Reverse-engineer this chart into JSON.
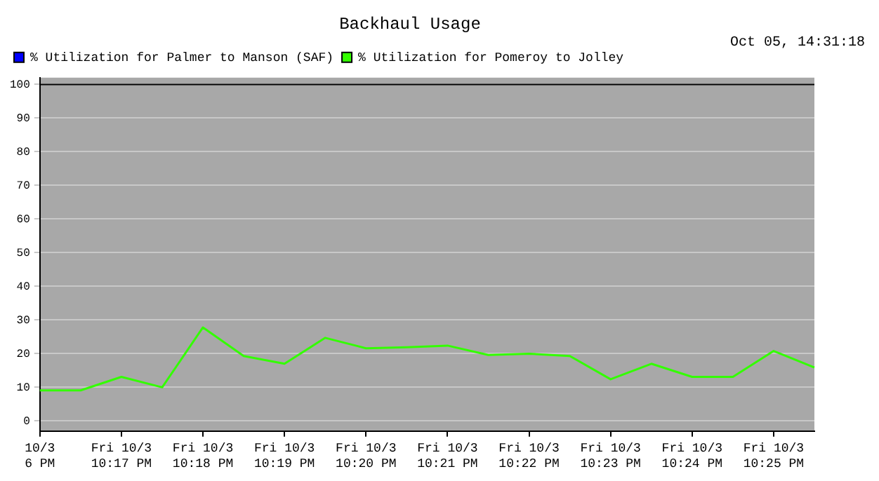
{
  "chart_data": {
    "type": "line",
    "title": "Backhaul Usage",
    "annotations": [
      "Oct 05, 14:31:18"
    ],
    "categories": [
      "10/3\n6 PM",
      null,
      "Fri 10/3\n10:17 PM",
      null,
      "Fri 10/3\n10:18 PM",
      null,
      "Fri 10/3\n10:19 PM",
      null,
      "Fri 10/3\n10:20 PM",
      null,
      "Fri 10/3\n10:21 PM",
      null,
      "Fri 10/3\n10:22 PM",
      null,
      "Fri 10/3\n10:23 PM",
      null,
      "Fri 10/3\n10:24 PM",
      null,
      "Fri 10/3\n10:25 PM",
      null
    ],
    "ylim": [
      -3,
      102
    ],
    "yticks": [
      0,
      10,
      20,
      30,
      40,
      50,
      60,
      70,
      80,
      90,
      100
    ],
    "ref_lines": [
      {
        "axis": "y",
        "value": 100,
        "color": "#000000"
      }
    ],
    "grid": "y",
    "legend": "top left",
    "marker": "none",
    "line_style": "solid",
    "series": [
      {
        "name": "% Utilization for Palmer to Manson (SAF)",
        "color": "#0000ff",
        "values": [
          null,
          null,
          null,
          null,
          null,
          null,
          null,
          null,
          null,
          null,
          null,
          null,
          null,
          null,
          null,
          null,
          null,
          null,
          null,
          null
        ]
      },
      {
        "name": "% Utilization for Pomeroy to Jolley",
        "color": "#33ff00",
        "values": [
          9.1,
          9.1,
          13.1,
          10.0,
          27.8,
          19.3,
          17.0,
          24.7,
          21.6,
          21.9,
          22.4,
          19.6,
          20.0,
          19.3,
          12.4,
          17.0,
          13.1,
          13.1,
          20.8,
          15.9
        ]
      }
    ]
  }
}
